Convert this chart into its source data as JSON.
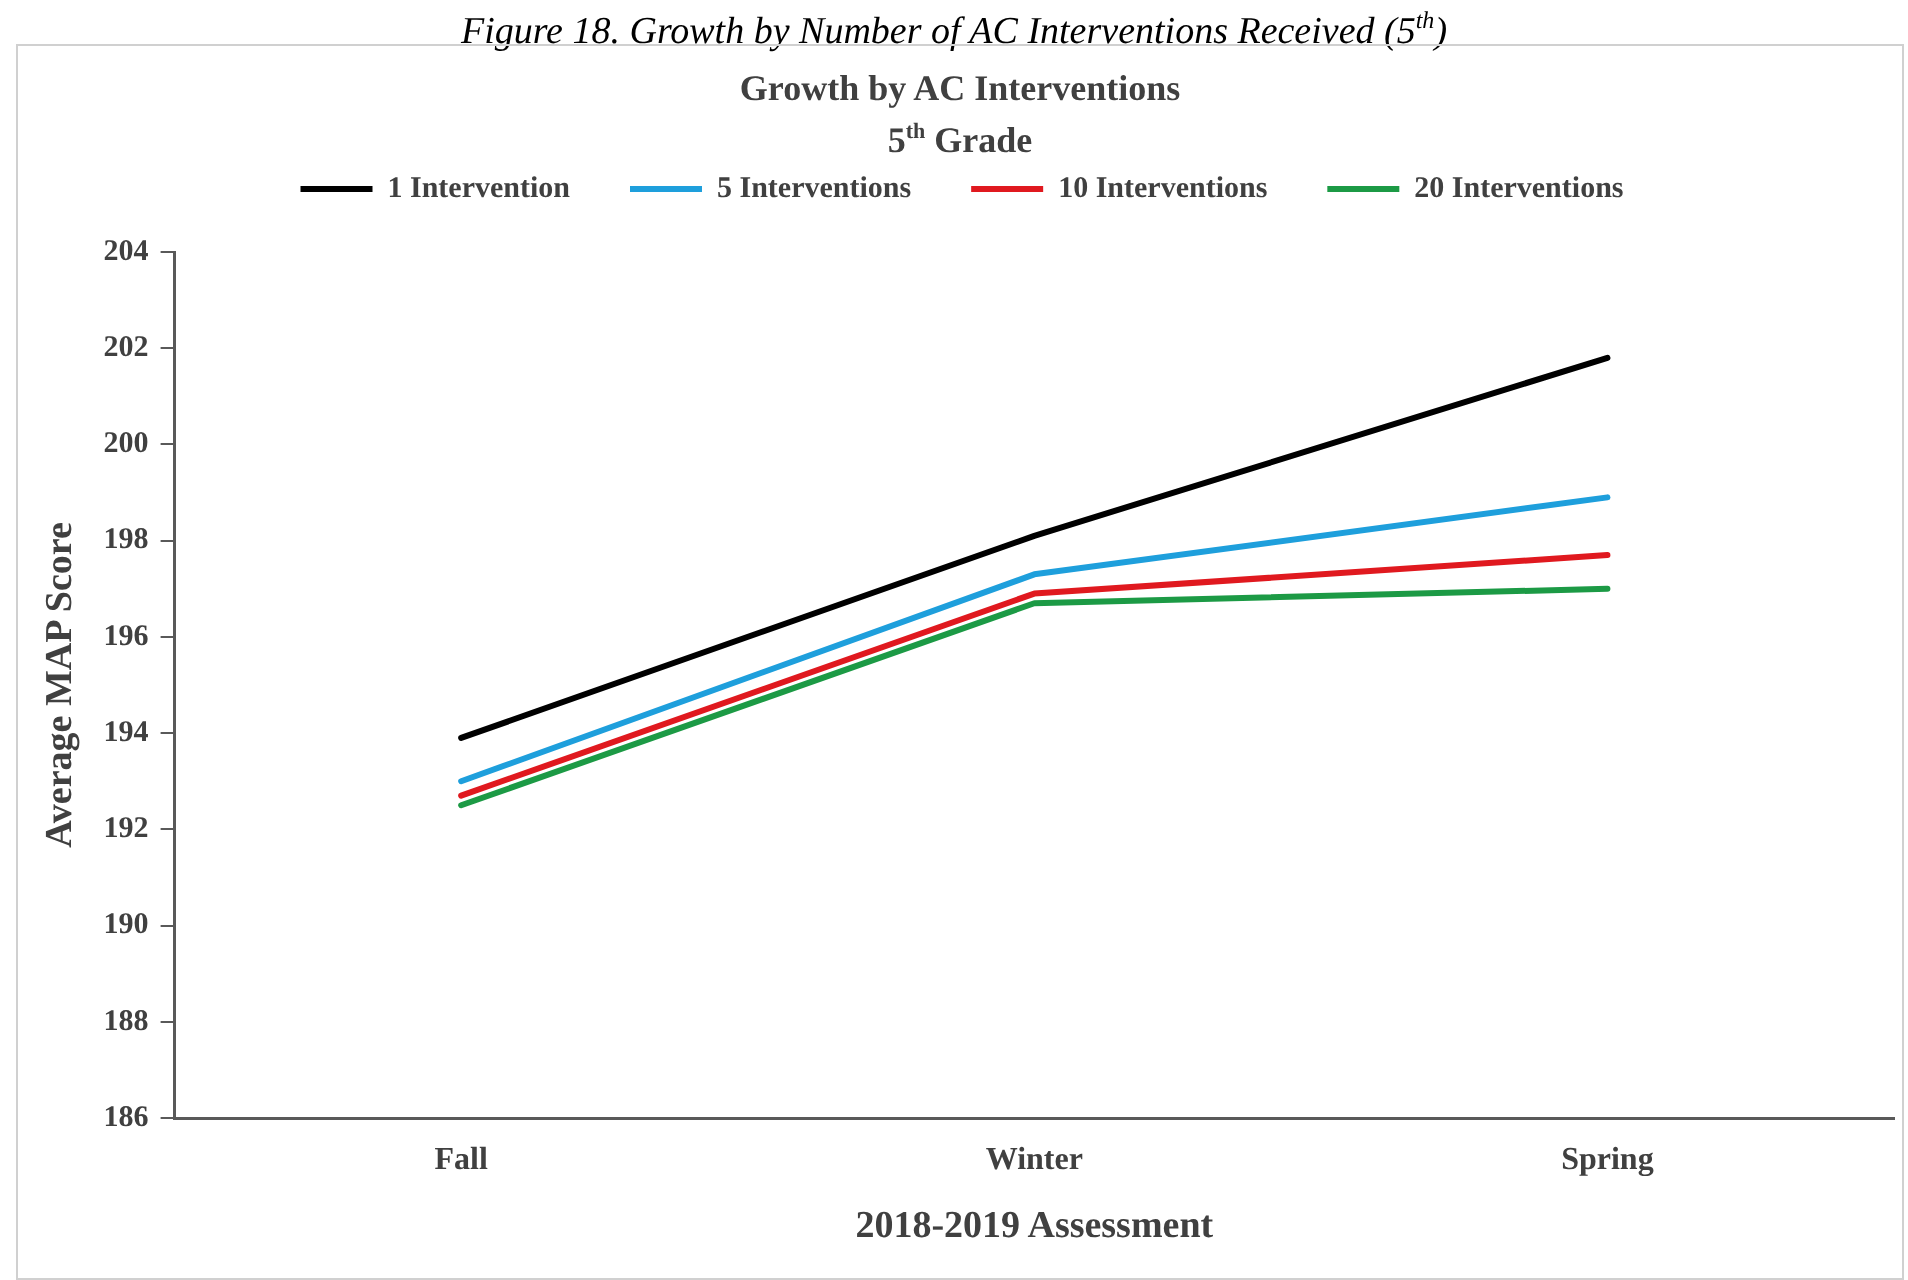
{
  "chart_data": {
    "type": "line",
    "title": "Growth by AC Interventions",
    "subtitle": "5$^{th}$ Grade",
    "annotations": [
      "Figure 18. Growth by Number of AC Interventions Received (5$^{th}$)"
    ],
    "xlabel": "2018-2019 Assessment",
    "ylabel": "Average MAP Score",
    "categories": [
      "Fall",
      "Winter",
      "Spring"
    ],
    "series": [
      {
        "name": "1 Intervention",
        "color": "#000000",
        "values": [
          193.9,
          198.1,
          201.8
        ]
      },
      {
        "name": "5 Interventions",
        "color": "#1e9fdc",
        "values": [
          193.0,
          197.3,
          198.9
        ]
      },
      {
        "name": "10 Interventions",
        "color": "#e0191f",
        "values": [
          192.7,
          196.9,
          197.7
        ]
      },
      {
        "name": "20 Interventions",
        "color": "#1c9a45",
        "values": [
          192.5,
          196.7,
          197.0
        ]
      }
    ],
    "ylim": [
      186,
      204
    ],
    "yticks": [
      186,
      188,
      190,
      192,
      194,
      196,
      198,
      200,
      202,
      204
    ],
    "legend": "top",
    "marker": "none",
    "line_style": "solid"
  }
}
